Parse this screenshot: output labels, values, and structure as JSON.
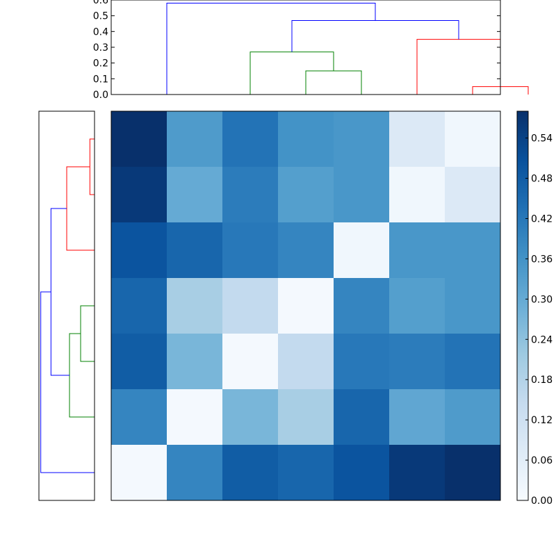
{
  "chart_data": [
    {
      "type": "dendrogram",
      "orientation": "top",
      "ylim": [
        0,
        0.6
      ],
      "yticks": [
        "0.0",
        "0.1",
        "0.2",
        "0.3",
        "0.4",
        "0.5",
        "0.6"
      ],
      "merges": [
        {
          "a": 6,
          "b": 7,
          "height": 0.05,
          "color": "#ff0000"
        },
        {
          "a": 5,
          "b": 6.5,
          "height": 0.35,
          "color": "#ff0000"
        },
        {
          "a": 3,
          "b": 4,
          "height": 0.15,
          "color": "#008000"
        },
        {
          "a": 2,
          "b": 3.5,
          "height": 0.27,
          "color": "#008000"
        },
        {
          "a": 2.75,
          "b": 5.75,
          "height": 0.47,
          "color": "#0000ff"
        },
        {
          "a": 0.5,
          "b": 4.25,
          "height": 0.58,
          "color": "#0000ff"
        }
      ]
    },
    {
      "type": "dendrogram",
      "orientation": "left",
      "merges": [
        {
          "a": 0,
          "b": 1,
          "height": 0.05,
          "color": "#ff0000"
        },
        {
          "a": 0.5,
          "b": 2,
          "height": 0.3,
          "color": "#ff0000"
        },
        {
          "a": 3,
          "b": 4,
          "height": 0.15,
          "color": "#008000"
        },
        {
          "a": 3.5,
          "b": 5,
          "height": 0.27,
          "color": "#008000"
        },
        {
          "a": 1.25,
          "b": 4.25,
          "height": 0.47,
          "color": "#0000ff"
        },
        {
          "a": 2.75,
          "b": 6,
          "height": 0.58,
          "color": "#0000ff"
        }
      ]
    },
    {
      "type": "heatmap",
      "colormap": "Blues",
      "vmin": 0,
      "vmax": 0.58,
      "values": [
        [
          0.58,
          0.34,
          0.43,
          0.36,
          0.35,
          0.08,
          0.02
        ],
        [
          0.56,
          0.3,
          0.41,
          0.33,
          0.35,
          0.02,
          0.08
        ],
        [
          0.5,
          0.46,
          0.42,
          0.39,
          0.02,
          0.35,
          0.35
        ],
        [
          0.46,
          0.2,
          0.15,
          0.01,
          0.39,
          0.33,
          0.35
        ],
        [
          0.48,
          0.27,
          0.01,
          0.15,
          0.42,
          0.41,
          0.43
        ],
        [
          0.39,
          0.01,
          0.27,
          0.2,
          0.46,
          0.31,
          0.34
        ],
        [
          0.01,
          0.39,
          0.48,
          0.46,
          0.5,
          0.56,
          0.58
        ]
      ]
    },
    {
      "type": "colorbar",
      "ticks": [
        "0.00",
        "0.06",
        "0.12",
        "0.18",
        "0.24",
        "0.30",
        "0.36",
        "0.42",
        "0.48",
        "0.54"
      ]
    }
  ]
}
